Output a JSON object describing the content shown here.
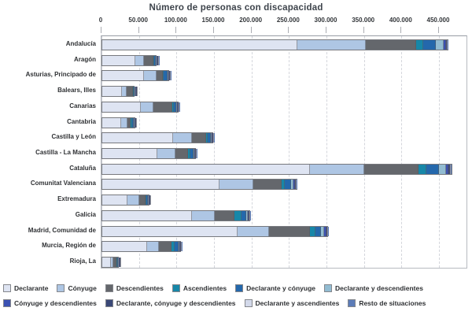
{
  "title": "Número de personas con discapacidad",
  "chart_data": {
    "type": "bar",
    "orientation": "horizontal",
    "stacked": true,
    "title": "Número de personas con discapacidad",
    "xlabel": "",
    "ylabel": "",
    "xlim": [
      0,
      488000
    ],
    "grid": "vertical-dashed",
    "legend_position": "bottom",
    "axis": {
      "ticks": [
        {
          "value": 0,
          "label": "0"
        },
        {
          "value": 50000,
          "label": "50.000"
        },
        {
          "value": 100000,
          "label": "100.000"
        },
        {
          "value": 150000,
          "label": "150.000"
        },
        {
          "value": 200000,
          "label": "200.000"
        },
        {
          "value": 250000,
          "label": "250.000"
        },
        {
          "value": 300000,
          "label": "300.000"
        },
        {
          "value": 350000,
          "label": "350.000"
        },
        {
          "value": 400000,
          "label": "400.000"
        },
        {
          "value": 450000,
          "label": "450.000"
        }
      ]
    },
    "categories": [
      "Andalucía",
      "Aragón",
      "Asturias, Principado de",
      "Balears, Illes",
      "Canarias",
      "Cantabria",
      "Castilla y León",
      "Castilla - La Mancha",
      "Cataluña",
      "Comunitat Valenciana",
      "Extremadura",
      "Galicia",
      "Madrid, Comunidad de",
      "Murcia, Región de",
      "Rioja, La"
    ],
    "series": [
      {
        "name": "Declarante",
        "color": "#dee4f2",
        "values": [
          260000,
          44500,
          56000,
          26500,
          51000,
          25500,
          94000,
          73500,
          277000,
          156000,
          34000,
          120000,
          180000,
          60000,
          11800
        ]
      },
      {
        "name": "Cónyuge",
        "color": "#aec6e4",
        "values": [
          91000,
          10800,
          16000,
          5600,
          17500,
          8200,
          25500,
          24500,
          72500,
          45000,
          15300,
          30500,
          42000,
          16000,
          2600
        ]
      },
      {
        "name": "Descendientes",
        "color": "#64676c",
        "values": [
          68000,
          12800,
          8700,
          8700,
          24500,
          4600,
          18500,
          16000,
          72500,
          38000,
          8200,
          25500,
          55000,
          16000,
          4100
        ]
      },
      {
        "name": "Ascendientes",
        "color": "#1787a8",
        "values": [
          8500,
          500,
          800,
          300,
          2600,
          1500,
          3000,
          3000,
          10000,
          4200,
          1000,
          10200,
          7200,
          4100,
          500
        ]
      },
      {
        "name": "Declarante y cónyuge",
        "color": "#2468ac",
        "values": [
          17000,
          2000,
          5700,
          400,
          2600,
          2100,
          4200,
          4600,
          16500,
          8800,
          2100,
          5600,
          7800,
          5600,
          800
        ]
      },
      {
        "name": "Declarante y descendientes",
        "color": "#92bcd2",
        "values": [
          10500,
          300,
          300,
          100,
          1200,
          400,
          900,
          900,
          9500,
          3000,
          400,
          2000,
          4200,
          900,
          300
        ]
      },
      {
        "name": "Cónyuge y descendientes",
        "color": "#3b51b3",
        "values": [
          3000,
          400,
          200,
          100,
          800,
          300,
          500,
          500,
          4000,
          1800,
          300,
          1500,
          2600,
          500,
          200
        ]
      },
      {
        "name": "Declarante, cónyuge y descendientes",
        "color": "#3a4877",
        "values": [
          1200,
          200,
          100,
          50,
          500,
          150,
          300,
          300,
          2000,
          1000,
          150,
          500,
          600,
          300,
          100
        ]
      },
      {
        "name": "Declarante y ascendientes",
        "color": "#d3d9ea",
        "values": [
          600,
          100,
          100,
          25,
          250,
          75,
          150,
          150,
          1000,
          400,
          75,
          300,
          300,
          150,
          50
        ]
      },
      {
        "name": "Resto de situaciones",
        "color": "#5c7cb8",
        "values": [
          1200,
          100,
          100,
          25,
          250,
          75,
          150,
          150,
          1000,
          400,
          75,
          300,
          300,
          150,
          50
        ]
      }
    ],
    "legend_rows": [
      [
        0,
        1,
        2,
        3,
        4,
        5
      ],
      [
        6,
        7,
        8,
        9
      ]
    ]
  },
  "style": {
    "title_color": "#3d434b",
    "grid_color": "#d4d6dc",
    "bar_border_color": "#77797e"
  }
}
